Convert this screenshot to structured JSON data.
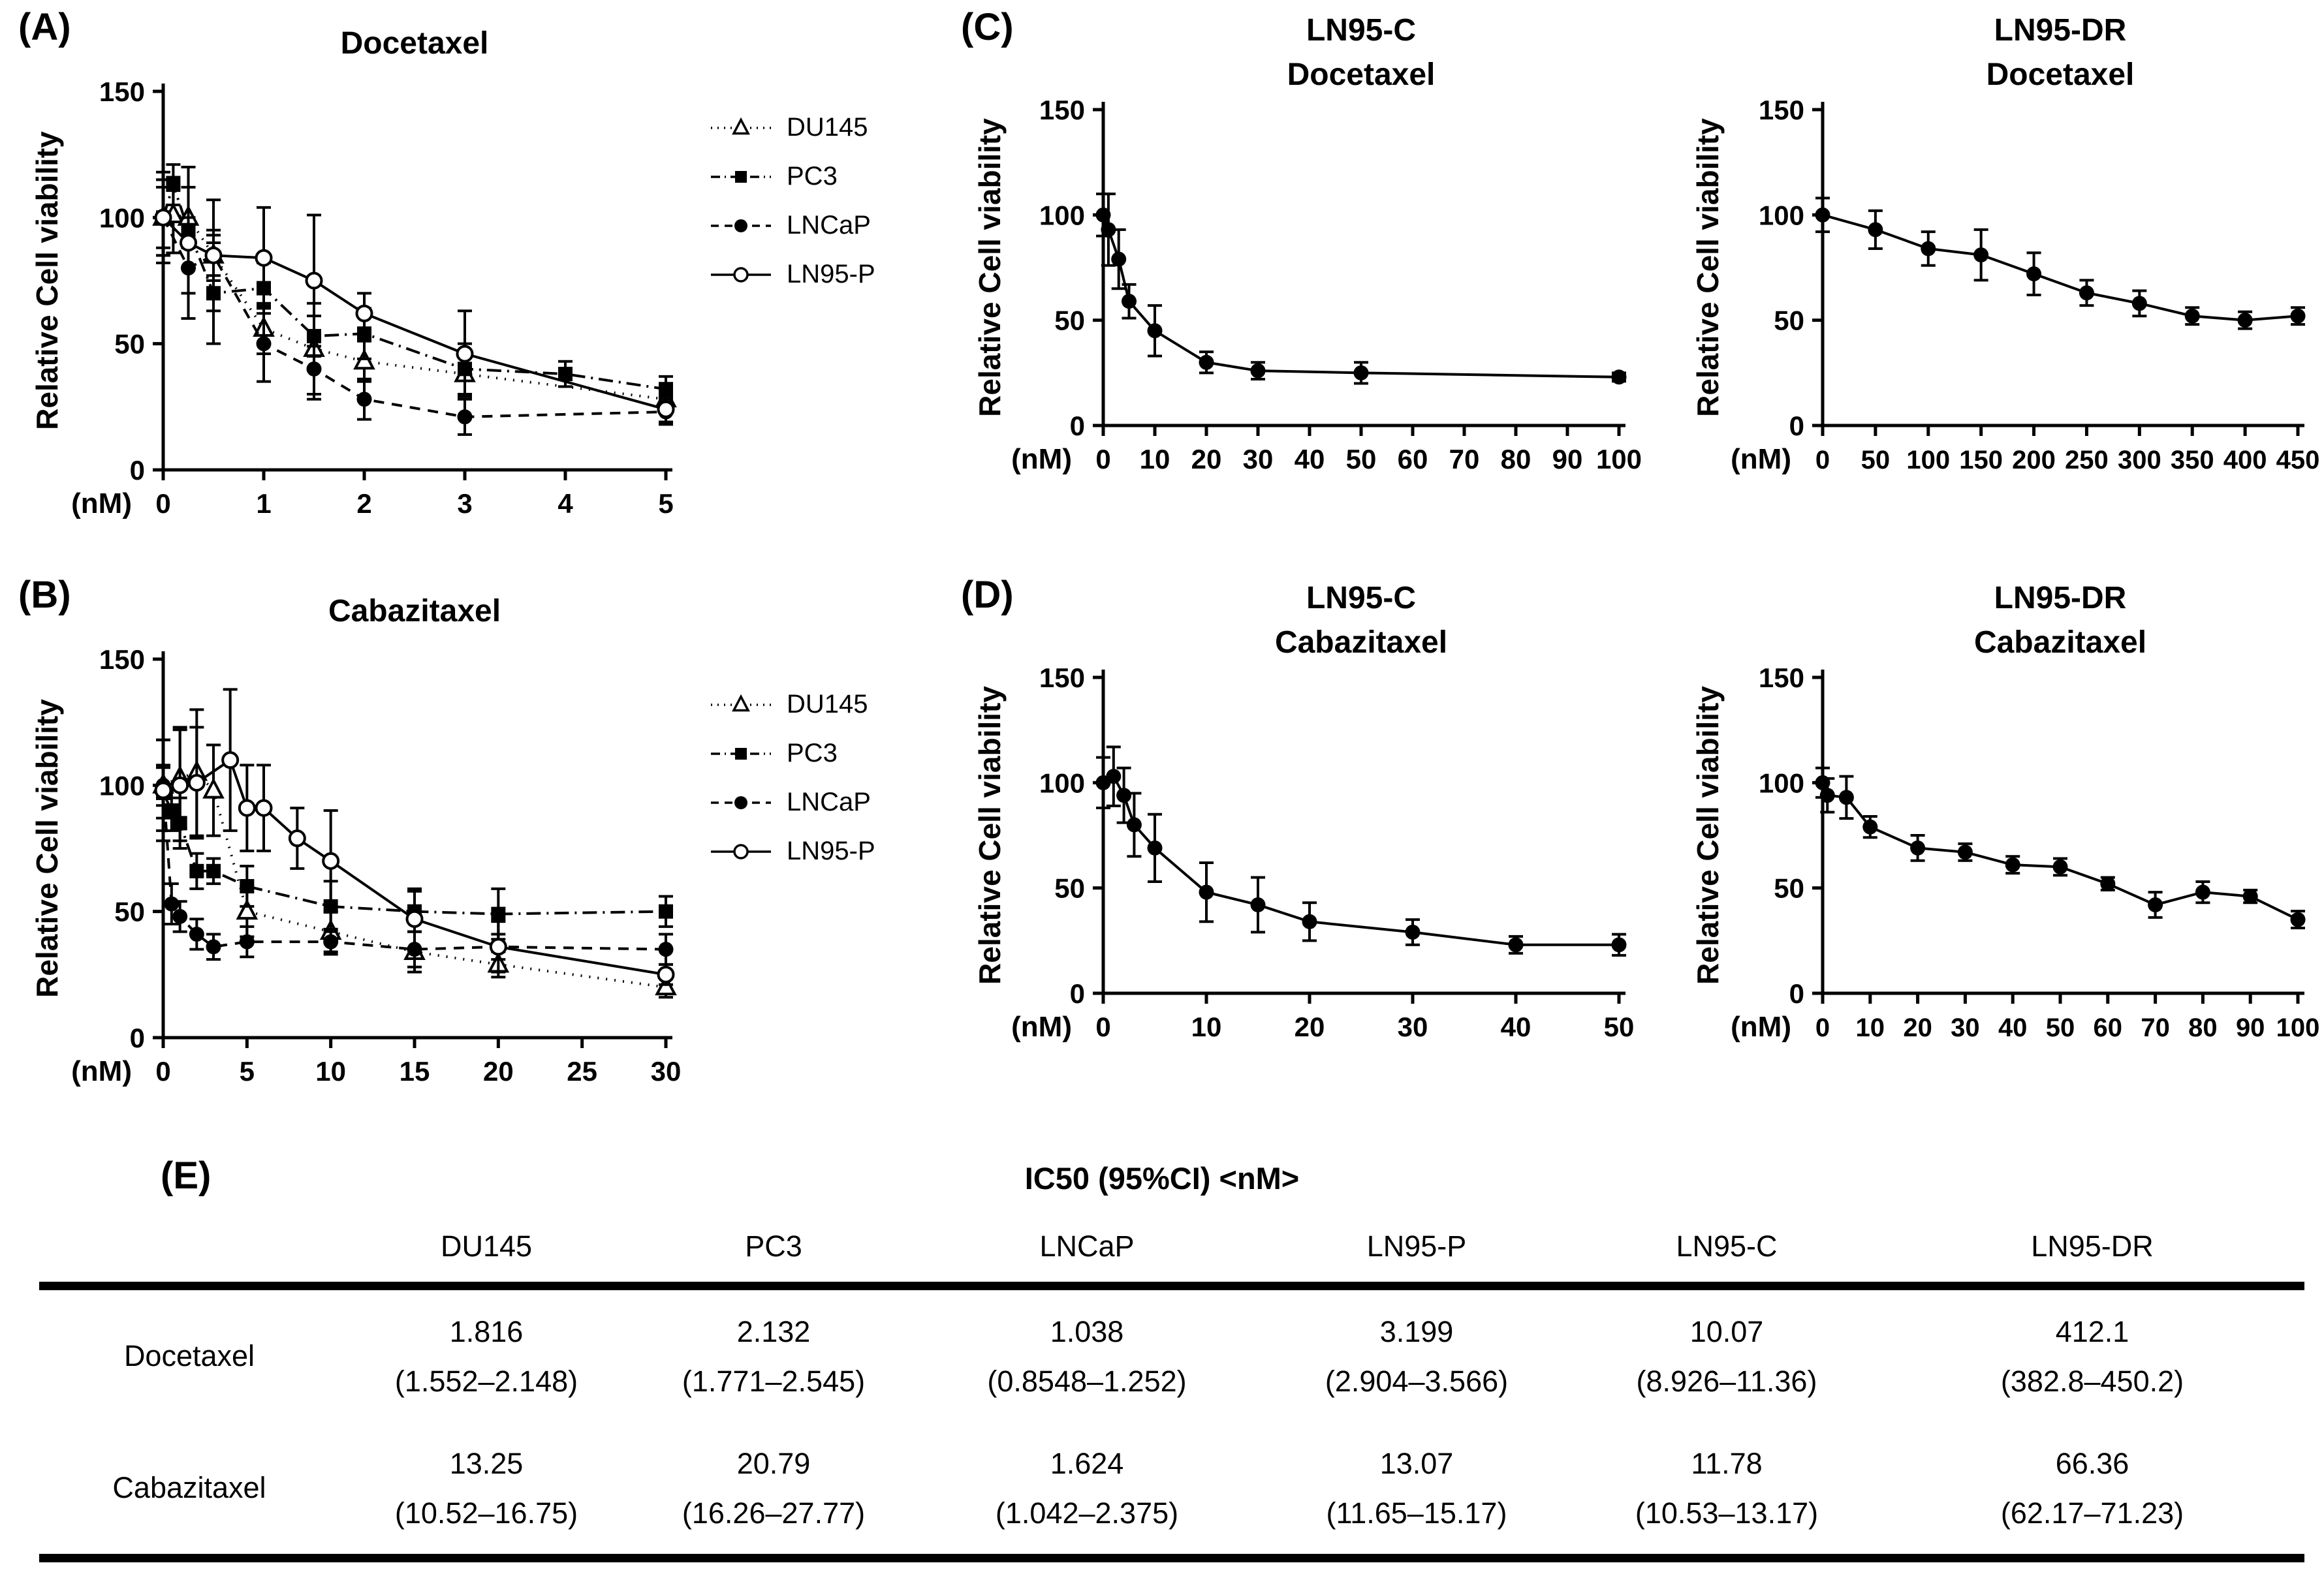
{
  "figure": {
    "background": "#ffffff",
    "ink": "#000000"
  },
  "panel_letters": {
    "a": "(A)",
    "b": "(B)",
    "c": "(C)",
    "d": "(D)"
  },
  "legend": {
    "items": [
      {
        "label": "DU145",
        "marker": "triangle-open",
        "line": "dotted"
      },
      {
        "label": "PC3",
        "marker": "square-filled",
        "line": "dashdot"
      },
      {
        "label": "LNCaP",
        "marker": "circle-filled",
        "line": "dashed"
      },
      {
        "label": "LN95-P",
        "marker": "circle-open",
        "line": "solid"
      }
    ]
  },
  "chart_data": [
    {
      "id": "panel-a-docetaxel",
      "type": "line",
      "panel": "A",
      "title_lines": [
        "Docetaxel"
      ],
      "ylabel": "Relative Cell viability",
      "x_unit": "(nM)",
      "xlim": [
        0,
        5
      ],
      "ylim": [
        0,
        150
      ],
      "x_ticks": [
        0,
        1,
        2,
        3,
        4,
        5
      ],
      "y_ticks": [
        0,
        50,
        100,
        150
      ],
      "grid": false,
      "legend_position": "right",
      "series": [
        {
          "name": "DU145",
          "marker": "triangle-open",
          "line": "dotted",
          "x": [
            0,
            0.1,
            0.25,
            0.5,
            1,
            1.5,
            2,
            3,
            5
          ],
          "y": [
            100,
            101,
            100,
            85,
            56,
            48,
            43,
            38,
            28
          ],
          "err": [
            18,
            15,
            12,
            22,
            10,
            18,
            8,
            8,
            5
          ]
        },
        {
          "name": "PC3",
          "marker": "square-filled",
          "line": "dashdot",
          "x": [
            0,
            0.1,
            0.25,
            0.5,
            1,
            1.5,
            2,
            3,
            4,
            5
          ],
          "y": [
            100,
            113,
            95,
            70,
            72,
            53,
            54,
            40,
            38,
            32
          ],
          "err": [
            15,
            8,
            25,
            20,
            10,
            8,
            10,
            10,
            5,
            5
          ]
        },
        {
          "name": "LNCaP",
          "marker": "circle-filled",
          "line": "dashed",
          "x": [
            0,
            0.25,
            0.5,
            1,
            1.5,
            2,
            3,
            5
          ],
          "y": [
            100,
            80,
            85,
            50,
            40,
            28,
            21,
            23
          ],
          "err": [
            15,
            20,
            10,
            15,
            12,
            8,
            7,
            5
          ]
        },
        {
          "name": "LN95-P",
          "marker": "circle-open",
          "line": "solid",
          "x": [
            0,
            0.25,
            0.5,
            1,
            1.5,
            2,
            3,
            5
          ],
          "y": [
            100,
            90,
            85,
            84,
            75,
            62,
            46,
            24
          ],
          "err": [
            12,
            30,
            8,
            20,
            26,
            8,
            17,
            5
          ]
        }
      ]
    },
    {
      "id": "panel-b-cabazitaxel",
      "type": "line",
      "panel": "B",
      "title_lines": [
        "Cabazitaxel"
      ],
      "ylabel": "Relative Cell viability",
      "x_unit": "(nM)",
      "xlim": [
        0,
        30
      ],
      "ylim": [
        0,
        150
      ],
      "x_ticks": [
        0,
        5,
        10,
        15,
        20,
        25,
        30
      ],
      "y_ticks": [
        0,
        50,
        100,
        150
      ],
      "grid": false,
      "legend_position": "right",
      "series": [
        {
          "name": "DU145",
          "marker": "triangle-open",
          "line": "dotted",
          "x": [
            0,
            1,
            2,
            3,
            5,
            10,
            15,
            20,
            30
          ],
          "y": [
            100,
            103,
            105,
            98,
            50,
            42,
            34,
            29,
            20
          ],
          "err": [
            8,
            20,
            25,
            18,
            10,
            8,
            8,
            5,
            4
          ]
        },
        {
          "name": "PC3",
          "marker": "square-filled",
          "line": "dashdot",
          "x": [
            0,
            0.5,
            1,
            2,
            3,
            5,
            10,
            15,
            20,
            30
          ],
          "y": [
            97,
            90,
            85,
            66,
            66,
            60,
            52,
            50,
            49,
            50
          ],
          "err": [
            10,
            8,
            10,
            7,
            5,
            8,
            10,
            8,
            10,
            6
          ]
        },
        {
          "name": "LNCaP",
          "marker": "circle-filled",
          "line": "dashed",
          "x": [
            0,
            0.5,
            1,
            2,
            3,
            5,
            10,
            15,
            20,
            30
          ],
          "y": [
            100,
            53,
            48,
            41,
            36,
            38,
            38,
            35,
            36,
            35
          ],
          "err": [
            18,
            8,
            6,
            6,
            5,
            6,
            5,
            7,
            5,
            6
          ]
        },
        {
          "name": "LN95-P",
          "marker": "circle-open",
          "line": "solid",
          "x": [
            0,
            1,
            2,
            4,
            5,
            6,
            8,
            10,
            15,
            20,
            30
          ],
          "y": [
            98,
            100,
            101,
            110,
            91,
            91,
            79,
            70,
            47,
            36,
            25
          ],
          "err": [
            20,
            22,
            22,
            28,
            17,
            17,
            12,
            20,
            12,
            10,
            4
          ]
        }
      ]
    },
    {
      "id": "panel-c-ln95c-docetaxel",
      "type": "line",
      "panel": "C",
      "title_lines": [
        "LN95-C",
        "Docetaxel"
      ],
      "ylabel": "Relative Cell viability",
      "x_unit": "(nM)",
      "xlim": [
        0,
        100
      ],
      "ylim": [
        0,
        150
      ],
      "x_ticks": [
        0,
        10,
        20,
        30,
        40,
        50,
        60,
        70,
        80,
        90,
        100
      ],
      "y_ticks": [
        0,
        50,
        100,
        150
      ],
      "grid": false,
      "legend_position": "none",
      "series": [
        {
          "name": "LN95-C",
          "marker": "circle-filled",
          "line": "solid",
          "x": [
            0,
            1,
            3,
            5,
            10,
            20,
            30,
            50,
            100
          ],
          "y": [
            100,
            93,
            79,
            59,
            45,
            30,
            26,
            25,
            23
          ],
          "err": [
            10,
            17,
            14,
            8,
            12,
            5,
            4,
            5,
            2
          ]
        }
      ]
    },
    {
      "id": "panel-c-ln95dr-docetaxel",
      "type": "line",
      "panel": "C",
      "title_lines": [
        "LN95-DR",
        "Docetaxel"
      ],
      "ylabel": "Relative Cell viability",
      "x_unit": "(nM)",
      "xlim": [
        0,
        450
      ],
      "ylim": [
        0,
        150
      ],
      "x_ticks": [
        0,
        50,
        100,
        150,
        200,
        250,
        300,
        350,
        400,
        450
      ],
      "y_ticks": [
        0,
        50,
        100,
        150
      ],
      "grid": false,
      "legend_position": "none",
      "series": [
        {
          "name": "LN95-DR",
          "marker": "circle-filled",
          "line": "solid",
          "x": [
            0,
            50,
            100,
            150,
            200,
            250,
            300,
            350,
            400,
            450
          ],
          "y": [
            100,
            93,
            84,
            81,
            72,
            63,
            58,
            52,
            50,
            52
          ],
          "err": [
            8,
            9,
            8,
            12,
            10,
            6,
            6,
            4,
            4,
            4
          ]
        }
      ]
    },
    {
      "id": "panel-d-ln95c-cabazitaxel",
      "type": "line",
      "panel": "D",
      "title_lines": [
        "LN95-C",
        "Cabazitaxel"
      ],
      "ylabel": "Relative Cell viability",
      "x_unit": "(nM)",
      "xlim": [
        0,
        50
      ],
      "ylim": [
        0,
        150
      ],
      "x_ticks": [
        0,
        10,
        20,
        30,
        40,
        50
      ],
      "y_ticks": [
        0,
        50,
        100,
        150
      ],
      "grid": false,
      "legend_position": "none",
      "series": [
        {
          "name": "LN95-C",
          "marker": "circle-filled",
          "line": "solid",
          "x": [
            0,
            1,
            2,
            3,
            5,
            10,
            15,
            20,
            30,
            40,
            50
          ],
          "y": [
            100,
            103,
            94,
            80,
            69,
            48,
            42,
            34,
            29,
            23,
            23
          ],
          "err": [
            12,
            14,
            13,
            15,
            16,
            14,
            13,
            9,
            6,
            4,
            5
          ]
        }
      ]
    },
    {
      "id": "panel-d-ln95dr-cabazitaxel",
      "type": "line",
      "panel": "D",
      "title_lines": [
        "LN95-DR",
        "Cabazitaxel"
      ],
      "ylabel": "Relative Cell viability",
      "x_unit": "(nM)",
      "xlim": [
        0,
        100
      ],
      "ylim": [
        0,
        150
      ],
      "x_ticks": [
        0,
        10,
        20,
        30,
        40,
        50,
        60,
        70,
        80,
        90,
        100
      ],
      "y_ticks": [
        0,
        50,
        100,
        150
      ],
      "grid": false,
      "legend_position": "none",
      "series": [
        {
          "name": "LN95-DR",
          "marker": "circle-filled",
          "line": "solid",
          "x": [
            0,
            1,
            5,
            10,
            20,
            30,
            40,
            50,
            60,
            70,
            80,
            90,
            100
          ],
          "y": [
            100,
            94,
            93,
            79,
            69,
            67,
            61,
            60,
            52,
            42,
            48,
            46,
            35
          ],
          "err": [
            7,
            8,
            10,
            5,
            6,
            4,
            4,
            4,
            3,
            6,
            5,
            3,
            4
          ]
        }
      ]
    }
  ],
  "table": {
    "label": "(E)",
    "title": "IC50 (95%CI) <nM>",
    "columns": [
      "DU145",
      "PC3",
      "LNCaP",
      "LN95-P",
      "LN95-C",
      "LN95-DR"
    ],
    "rows": [
      {
        "name": "Docetaxel",
        "ic50": [
          "1.816",
          "2.132",
          "1.038",
          "3.199",
          "10.07",
          "412.1"
        ],
        "ci": [
          "(1.552–2.148)",
          "(1.771–2.545)",
          "(0.8548–1.252)",
          "(2.904–3.566)",
          "(8.926–11.36)",
          "(382.8–450.2)"
        ]
      },
      {
        "name": "Cabazitaxel",
        "ic50": [
          "13.25",
          "20.79",
          "1.624",
          "13.07",
          "11.78",
          "66.36"
        ],
        "ci": [
          "(10.52–16.75)",
          "(16.26–27.77)",
          "(1.042–2.375)",
          "(11.65–15.17)",
          "(10.53–13.17)",
          "(62.17–71.23)"
        ]
      }
    ]
  }
}
